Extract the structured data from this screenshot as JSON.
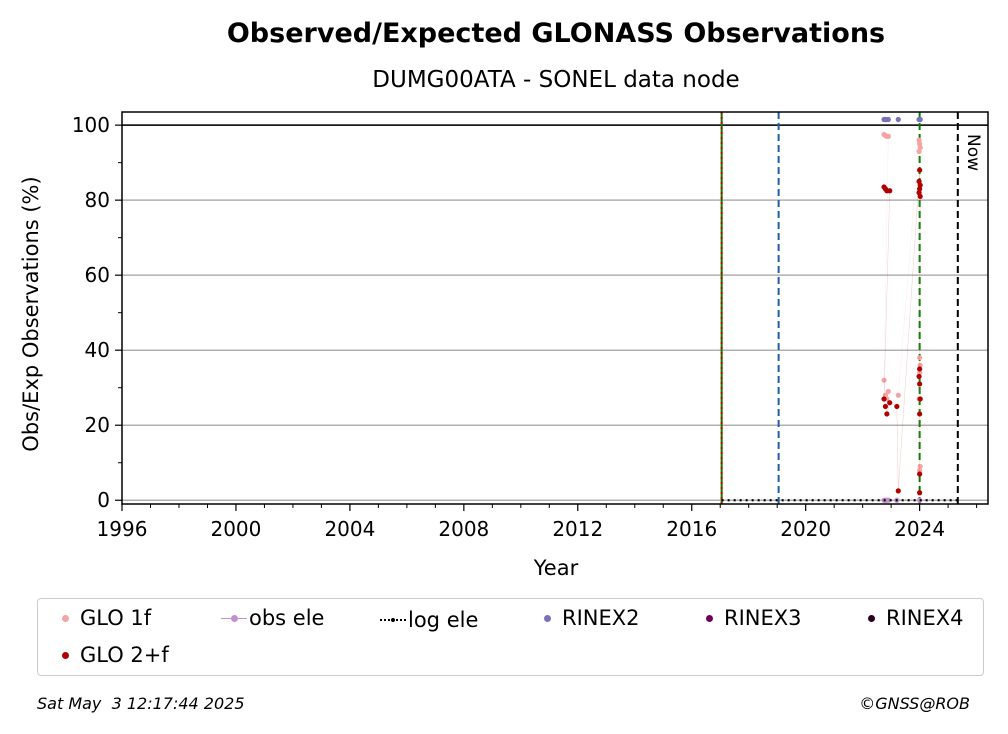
{
  "chart_data": {
    "type": "scatter",
    "title": "Observed/Expected GLONASS Observations",
    "subtitle": "DUMG00ATA - SONEL data node",
    "xlabel": "Year",
    "ylabel": "Obs/Exp Observations (%)",
    "xlim": [
      1996,
      2026.4
    ],
    "ylim": [
      -1,
      103.5
    ],
    "xticks": [
      1996,
      2000,
      2004,
      2008,
      2012,
      2016,
      2020,
      2024
    ],
    "yticks": [
      0,
      20,
      40,
      60,
      80,
      100
    ],
    "grid": "horizontal",
    "reference_line_y": 100,
    "vlines": [
      {
        "x": 2017.05,
        "color": "#008000",
        "style": "solid"
      },
      {
        "x": 2017.05,
        "color": "#cc0000",
        "style": "dotted"
      },
      {
        "x": 2019.05,
        "color": "#1f5fa8",
        "style": "dashed"
      },
      {
        "x": 2024.0,
        "color": "#008000",
        "style": "dashed"
      },
      {
        "x": 2025.34,
        "color": "#000000",
        "style": "dashed"
      }
    ],
    "now_label": "Now",
    "series": [
      {
        "name": "GLO 1f",
        "color": "#f4a4a4",
        "x": [
          2022.75,
          2022.8,
          2022.85,
          2022.9,
          2022.75,
          2022.8,
          2022.85,
          2022.9,
          2023.25,
          2023.98,
          2024.0,
          2024.02,
          2023.98,
          2024.0,
          2024.02,
          2024.0,
          2023.98,
          2024.02,
          2024.0
        ],
        "y": [
          97.5,
          97.2,
          97,
          97,
          32,
          28,
          27,
          29,
          28,
          96,
          95,
          94,
          93,
          38,
          36,
          34,
          27,
          9,
          8
        ]
      },
      {
        "name": "GLO 2+f",
        "color": "#b00000",
        "x": [
          2022.75,
          2022.8,
          2022.85,
          2022.95,
          2022.75,
          2022.8,
          2022.85,
          2022.95,
          2023.2,
          2023.25,
          2024.0,
          2023.98,
          2024.02,
          2024.0,
          2023.98,
          2024.02,
          2024.0,
          2023.98,
          2024.0,
          2024.02,
          2024.0,
          2024.0,
          2024.0
        ],
        "y": [
          83.5,
          83,
          82.5,
          82.5,
          27,
          25,
          23,
          26,
          25,
          2.5,
          88,
          85,
          84,
          83,
          82,
          81,
          35,
          33,
          31,
          27,
          23,
          7,
          2
        ]
      },
      {
        "name": "obs ele",
        "color": "#c38fd0",
        "x": [
          2022.75,
          2022.8,
          2022.85,
          2022.9,
          2023.2,
          2024.0
        ],
        "y": [
          0,
          0,
          0,
          0,
          0,
          0
        ]
      },
      {
        "name": "log ele",
        "color": "#000000",
        "style": "dotted",
        "x": [
          2017.05,
          2025.34
        ],
        "y": [
          0,
          0
        ]
      },
      {
        "name": "RINEX2",
        "color": "#7a72b8",
        "x": [
          2022.75,
          2022.8,
          2022.85,
          2022.9,
          2023.25,
          2023.98,
          2024.0,
          2024.02
        ],
        "y": [
          101.5,
          101.5,
          101.5,
          101.5,
          101.5,
          101.5,
          101.5,
          101.5
        ]
      },
      {
        "name": "RINEX3",
        "color": "#6a0060",
        "x": [],
        "y": []
      },
      {
        "name": "RINEX4",
        "color": "#2a0020",
        "x": [],
        "y": []
      }
    ]
  },
  "legend": {
    "items": [
      {
        "label": "GLO 1f",
        "color": "#f4a4a4",
        "kind": "dot"
      },
      {
        "label": "obs ele",
        "color": "#c38fd0",
        "kind": "line-dot"
      },
      {
        "label": "log ele",
        "color": "#000000",
        "kind": "dotted-line"
      },
      {
        "label": "RINEX2",
        "color": "#7a72b8",
        "kind": "dot"
      },
      {
        "label": "RINEX3",
        "color": "#6a0060",
        "kind": "dot"
      },
      {
        "label": "RINEX4",
        "color": "#2a0020",
        "kind": "dot"
      },
      {
        "label": "GLO 2+f",
        "color": "#b00000",
        "kind": "dot"
      }
    ]
  },
  "footer": {
    "timestamp": "Sat May  3 12:17:44 2025",
    "credit": "©GNSS@ROB"
  }
}
